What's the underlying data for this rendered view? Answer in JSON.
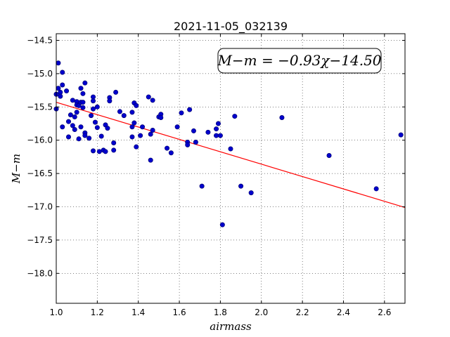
{
  "chart_data": {
    "type": "scatter",
    "title": "2021-11-05_032139",
    "xlabel": "airmass",
    "ylabel": "M−m",
    "xlim": [
      1.0,
      2.7
    ],
    "ylim": [
      -18.45,
      -14.4
    ],
    "y_inverted": true,
    "grid": true,
    "x_ticks": [
      "1.0",
      "1.2",
      "1.4",
      "1.6",
      "1.8",
      "2.0",
      "2.2",
      "2.4",
      "2.6"
    ],
    "y_ticks": [
      "−14.5",
      "−15.0",
      "−15.5",
      "−16.0",
      "−16.5",
      "−17.0",
      "−17.5",
      "−18.0"
    ],
    "annotation": "M−m = −0.93χ−14.50",
    "fit": {
      "slope": -0.93,
      "intercept": -14.5,
      "color": "#ff0000"
    },
    "marker_color": "#0000cc",
    "points": [
      [
        1.0,
        -15.31
      ],
      [
        1.0,
        -15.53
      ],
      [
        1.01,
        -15.22
      ],
      [
        1.01,
        -14.84
      ],
      [
        1.02,
        -15.28
      ],
      [
        1.02,
        -15.34
      ],
      [
        1.03,
        -15.17
      ],
      [
        1.03,
        -14.98
      ],
      [
        1.03,
        -15.8
      ],
      [
        1.05,
        -15.26
      ],
      [
        1.06,
        -15.95
      ],
      [
        1.06,
        -15.72
      ],
      [
        1.07,
        -15.62
      ],
      [
        1.08,
        -15.78
      ],
      [
        1.08,
        -15.4
      ],
      [
        1.09,
        -15.65
      ],
      [
        1.09,
        -15.84
      ],
      [
        1.1,
        -15.42
      ],
      [
        1.1,
        -15.47
      ],
      [
        1.1,
        -15.58
      ],
      [
        1.11,
        -15.48
      ],
      [
        1.11,
        -15.98
      ],
      [
        1.12,
        -15.43
      ],
      [
        1.12,
        -15.8
      ],
      [
        1.12,
        -15.22
      ],
      [
        1.13,
        -15.3
      ],
      [
        1.13,
        -15.51
      ],
      [
        1.13,
        -15.43
      ],
      [
        1.14,
        -15.14
      ],
      [
        1.14,
        -15.89
      ],
      [
        1.14,
        -15.93
      ],
      [
        1.16,
        -15.97
      ],
      [
        1.17,
        -15.63
      ],
      [
        1.18,
        -15.35
      ],
      [
        1.18,
        -15.41
      ],
      [
        1.18,
        -16.16
      ],
      [
        1.18,
        -15.53
      ],
      [
        1.19,
        -15.73
      ],
      [
        1.2,
        -15.5
      ],
      [
        1.2,
        -15.81
      ],
      [
        1.21,
        -16.17
      ],
      [
        1.22,
        -15.94
      ],
      [
        1.23,
        -16.15
      ],
      [
        1.24,
        -15.77
      ],
      [
        1.24,
        -16.17
      ],
      [
        1.25,
        -15.82
      ],
      [
        1.26,
        -15.36
      ],
      [
        1.26,
        -15.41
      ],
      [
        1.28,
        -16.04
      ],
      [
        1.28,
        -16.15
      ],
      [
        1.29,
        -15.28
      ],
      [
        1.31,
        -15.57
      ],
      [
        1.33,
        -15.63
      ],
      [
        1.37,
        -15.58
      ],
      [
        1.37,
        -15.95
      ],
      [
        1.37,
        -15.8
      ],
      [
        1.38,
        -15.44
      ],
      [
        1.38,
        -15.74
      ],
      [
        1.39,
        -15.48
      ],
      [
        1.39,
        -16.1
      ],
      [
        1.41,
        -15.93
      ],
      [
        1.42,
        -15.8
      ],
      [
        1.45,
        -15.35
      ],
      [
        1.46,
        -16.3
      ],
      [
        1.46,
        -15.91
      ],
      [
        1.47,
        -15.4
      ],
      [
        1.47,
        -15.85
      ],
      [
        1.5,
        -15.65
      ],
      [
        1.51,
        -15.61
      ],
      [
        1.51,
        -15.66
      ],
      [
        1.54,
        -16.12
      ],
      [
        1.56,
        -16.19
      ],
      [
        1.59,
        -15.8
      ],
      [
        1.61,
        -15.59
      ],
      [
        1.64,
        -16.03
      ],
      [
        1.64,
        -16.07
      ],
      [
        1.65,
        -15.54
      ],
      [
        1.67,
        -15.86
      ],
      [
        1.68,
        -16.03
      ],
      [
        1.71,
        -16.69
      ],
      [
        1.74,
        -15.88
      ],
      [
        1.78,
        -15.93
      ],
      [
        1.78,
        -15.83
      ],
      [
        1.79,
        -15.75
      ],
      [
        1.8,
        -15.93
      ],
      [
        1.81,
        -17.27
      ],
      [
        1.85,
        -16.13
      ],
      [
        1.87,
        -15.64
      ],
      [
        1.9,
        -16.69
      ],
      [
        1.95,
        -16.79
      ],
      [
        2.1,
        -15.66
      ],
      [
        2.33,
        -16.23
      ],
      [
        2.56,
        -16.73
      ],
      [
        2.68,
        -15.92
      ]
    ]
  }
}
